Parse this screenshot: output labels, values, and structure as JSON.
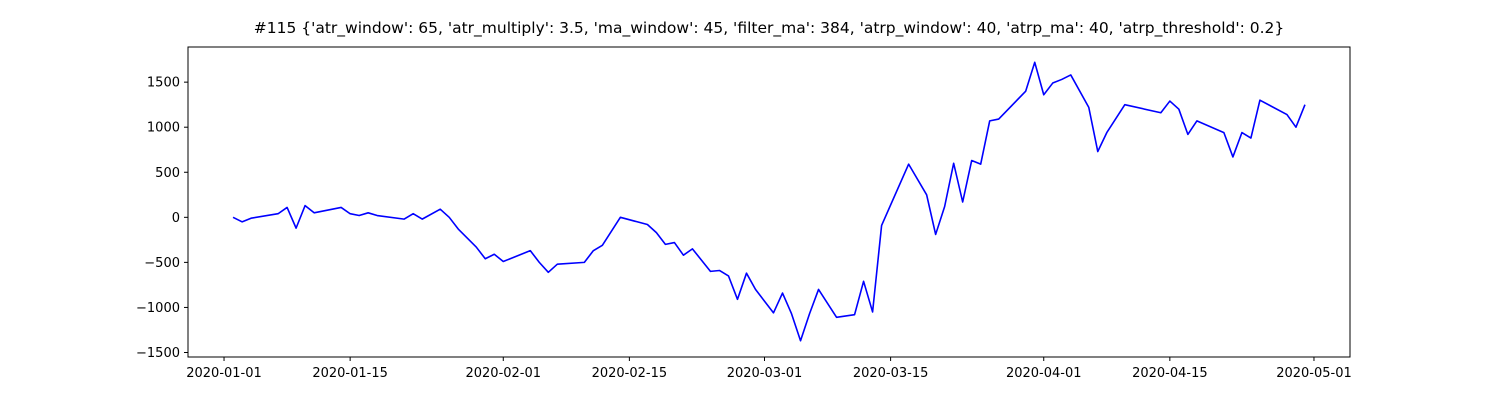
{
  "chart_data": {
    "type": "line",
    "title": "#115 {'atr_window': 65, 'atr_multiply': 3.5, 'ma_window': 45, 'filter_ma': 384, 'atrp_window': 40, 'atrp_ma': 40, 'atrp_threshold': 0.2}",
    "x": [
      "2020-01-02",
      "2020-01-03",
      "2020-01-04",
      "2020-01-07",
      "2020-01-08",
      "2020-01-09",
      "2020-01-10",
      "2020-01-11",
      "2020-01-14",
      "2020-01-15",
      "2020-01-16",
      "2020-01-17",
      "2020-01-18",
      "2020-01-21",
      "2020-01-22",
      "2020-01-23",
      "2020-01-25",
      "2020-01-26",
      "2020-01-27",
      "2020-01-28",
      "2020-01-29",
      "2020-01-30",
      "2020-01-31",
      "2020-02-01",
      "2020-02-04",
      "2020-02-05",
      "2020-02-06",
      "2020-02-07",
      "2020-02-10",
      "2020-02-11",
      "2020-02-12",
      "2020-02-14",
      "2020-02-17",
      "2020-02-18",
      "2020-02-19",
      "2020-02-20",
      "2020-02-21",
      "2020-02-22",
      "2020-02-24",
      "2020-02-25",
      "2020-02-26",
      "2020-02-27",
      "2020-02-28",
      "2020-02-29",
      "2020-03-02",
      "2020-03-03",
      "2020-03-04",
      "2020-03-05",
      "2020-03-06",
      "2020-03-07",
      "2020-03-09",
      "2020-03-11",
      "2020-03-12",
      "2020-03-13",
      "2020-03-14",
      "2020-03-17",
      "2020-03-19",
      "2020-03-20",
      "2020-03-21",
      "2020-03-22",
      "2020-03-23",
      "2020-03-24",
      "2020-03-25",
      "2020-03-26",
      "2020-03-27",
      "2020-03-30",
      "2020-03-31",
      "2020-04-01",
      "2020-04-02",
      "2020-04-03",
      "2020-04-04",
      "2020-04-06",
      "2020-04-07",
      "2020-04-08",
      "2020-04-10",
      "2020-04-14",
      "2020-04-15",
      "2020-04-16",
      "2020-04-17",
      "2020-04-18",
      "2020-04-21",
      "2020-04-22",
      "2020-04-23",
      "2020-04-24",
      "2020-04-25",
      "2020-04-28",
      "2020-04-29",
      "2020-04-30"
    ],
    "series": [
      {
        "color": "#0000ff",
        "values": [
          0,
          -50,
          -10,
          40,
          110,
          -120,
          130,
          50,
          110,
          40,
          20,
          50,
          20,
          -20,
          40,
          -20,
          90,
          0,
          -130,
          -230,
          -330,
          -460,
          -410,
          -490,
          -370,
          -500,
          -610,
          -520,
          -500,
          -370,
          -310,
          0,
          -80,
          -170,
          -300,
          -280,
          -420,
          -350,
          -600,
          -590,
          -650,
          -910,
          -620,
          -800,
          -1060,
          -840,
          -1070,
          -1370,
          -1070,
          -800,
          -1110,
          -1080,
          -710,
          -1050,
          -90,
          590,
          250,
          -190,
          120,
          600,
          170,
          630,
          590,
          1070,
          1090,
          1400,
          1720,
          1360,
          1490,
          1530,
          1580,
          1220,
          730,
          940,
          1250,
          1160,
          1290,
          1200,
          920,
          1070,
          940,
          670,
          940,
          880,
          1300,
          1140,
          1000,
          1250
        ]
      }
    ],
    "xlim": [
      "2019-12-28",
      "2020-05-05"
    ],
    "xticks": [
      "2020-01-01",
      "2020-01-15",
      "2020-02-01",
      "2020-02-15",
      "2020-03-01",
      "2020-03-15",
      "2020-04-01",
      "2020-04-15",
      "2020-05-01"
    ],
    "ylim": [
      -1550,
      1890
    ],
    "yticks": [
      {
        "value": -1500,
        "label": "−1500"
      },
      {
        "value": -1000,
        "label": "−1000"
      },
      {
        "value": -500,
        "label": "−500"
      },
      0,
      500,
      1000,
      1500
    ],
    "grid": false
  }
}
